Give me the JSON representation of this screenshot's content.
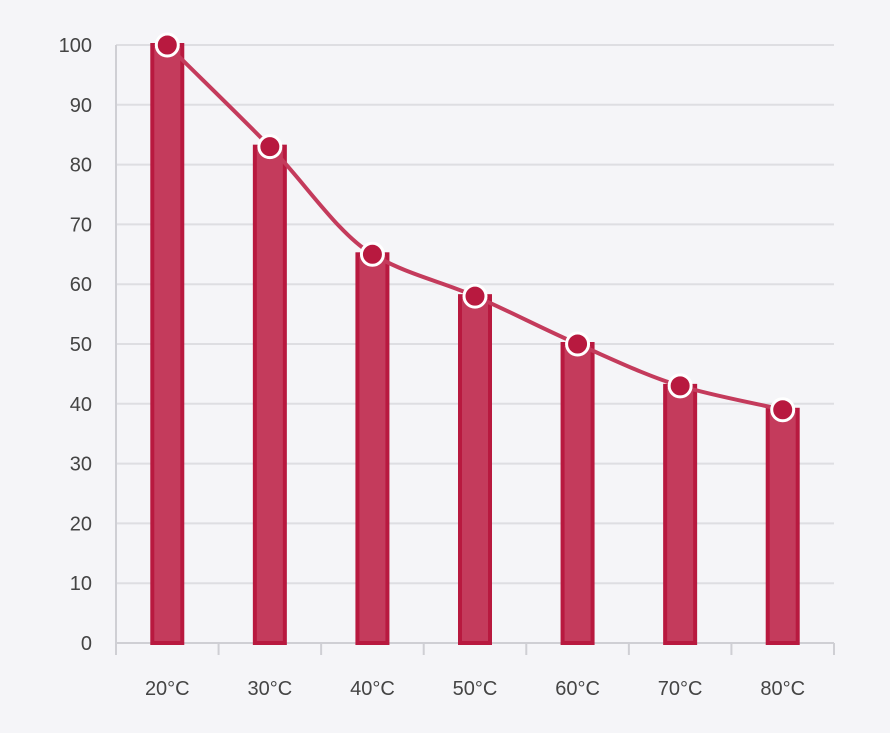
{
  "chart_data": {
    "type": "bar",
    "title": "",
    "xlabel": "",
    "ylabel": "",
    "categories": [
      "20°C",
      "30°C",
      "40°C",
      "50°C",
      "60°C",
      "70°C",
      "80°C"
    ],
    "values": [
      100,
      83,
      65,
      58,
      50,
      43,
      39
    ],
    "overlay_line": {
      "type": "smooth-line",
      "values": [
        100,
        83,
        65,
        58,
        50,
        43,
        39
      ],
      "markers": true
    },
    "ylim": [
      0,
      100
    ],
    "yticks": [
      0,
      10,
      20,
      30,
      40,
      50,
      60,
      70,
      80,
      90,
      100
    ],
    "grid": true,
    "legend": "none",
    "colors": {
      "bar_fill": "#c43b5c",
      "bar_stroke": "#b8193f",
      "line": "#c43b5c",
      "marker_fill": "#b8193f",
      "marker_stroke": "#ffffff",
      "grid": "#dedee2",
      "axis": "#cfcfd4",
      "text": "#444444",
      "background": "#f5f5f8"
    }
  }
}
